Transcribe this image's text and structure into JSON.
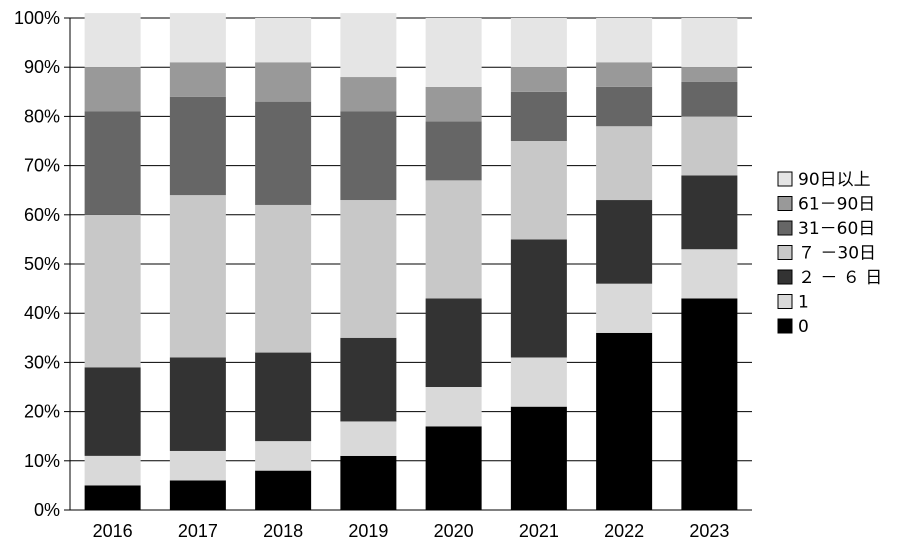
{
  "chart_data": {
    "type": "bar",
    "stacked": true,
    "categories": [
      "2016",
      "2017",
      "2018",
      "2019",
      "2020",
      "2021",
      "2022",
      "2023"
    ],
    "ylim": [
      0,
      100
    ],
    "yticks": [
      "0%",
      "10%",
      "20%",
      "30%",
      "40%",
      "50%",
      "60%",
      "70%",
      "80%",
      "90%",
      "100%"
    ],
    "grid": true,
    "legend_position": "right",
    "series": [
      {
        "name": "0",
        "color": "#000000",
        "values": [
          5,
          6,
          8,
          11,
          17,
          21,
          36,
          43
        ]
      },
      {
        "name": "1",
        "color": "#d9d9d9",
        "values": [
          6,
          6,
          6,
          7,
          8,
          10,
          10,
          10
        ]
      },
      {
        "name": "２ － ６ 日",
        "color": "#333333",
        "values": [
          18,
          19,
          18,
          17,
          18,
          24,
          17,
          15
        ]
      },
      {
        "name": "７ －30日",
        "color": "#c8c8c8",
        "values": [
          31,
          33,
          30,
          28,
          24,
          20,
          15,
          12
        ]
      },
      {
        "name": "31－60日",
        "color": "#666666",
        "values": [
          21,
          20,
          21,
          18,
          12,
          10,
          8,
          7
        ]
      },
      {
        "name": "61－90日",
        "color": "#999999",
        "values": [
          9,
          7,
          8,
          7,
          7,
          5,
          5,
          3
        ]
      },
      {
        "name": "90日以上",
        "color": "#e5e5e5",
        "values": [
          11,
          10,
          9,
          13,
          14,
          10,
          9,
          10
        ]
      }
    ]
  }
}
